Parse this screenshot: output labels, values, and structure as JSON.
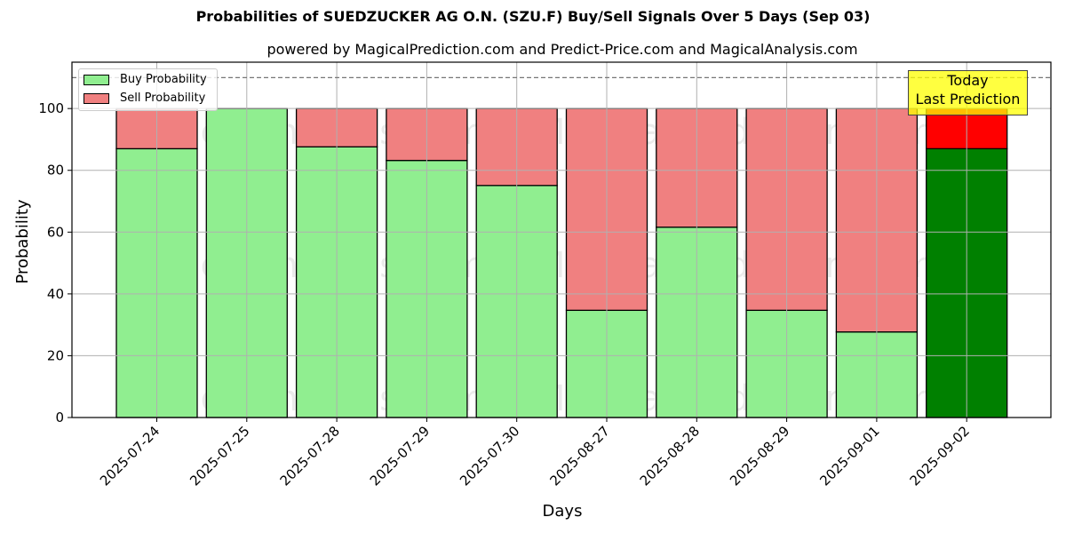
{
  "header": {
    "title": "Probabilities of SUEDZUCKER AG  O.N. (SZU.F) Buy/Sell Signals Over 5 Days (Sep 03)",
    "subtitle": "powered by MagicalPrediction.com and Predict-Price.com and MagicalAnalysis.com"
  },
  "legend": {
    "buy_label": "Buy Probability",
    "sell_label": "Sell Probability"
  },
  "annotation": {
    "line1": "Today",
    "line2": "Last Prediction"
  },
  "watermarks": [
    "MagicalAnalysis.com",
    "MagicalPrediction.com"
  ],
  "colors": {
    "buy": "#90ee90",
    "sell": "#f08080",
    "today_buy": "#008000",
    "today_sell": "#ff0000",
    "annotation_bg": "#ffff00"
  },
  "chart_data": {
    "type": "bar",
    "stacked": true,
    "title": "Probabilities of SUEDZUCKER AG  O.N. (SZU.F) Buy/Sell Signals Over 5 Days (Sep 03)",
    "subtitle": "powered by MagicalPrediction.com and Predict-Price.com and MagicalAnalysis.com",
    "xlabel": "Days",
    "ylabel": "Probability",
    "ylim": [
      0,
      115
    ],
    "yticks": [
      0,
      20,
      40,
      60,
      80,
      100
    ],
    "grid": true,
    "legend_position": "upper left",
    "reference_line": {
      "y": 110,
      "style": "dashed"
    },
    "categories": [
      "2025-07-24",
      "2025-07-25",
      "2025-07-28",
      "2025-07-29",
      "2025-07-30",
      "2025-08-27",
      "2025-08-28",
      "2025-08-29",
      "2025-09-01",
      "2025-09-02"
    ],
    "series": [
      {
        "name": "Buy Probability",
        "values": [
          87.0,
          100.0,
          87.6,
          83.2,
          75.1,
          34.7,
          61.6,
          34.7,
          27.7,
          87.0
        ]
      },
      {
        "name": "Sell Probability",
        "values": [
          13.0,
          0.0,
          12.4,
          16.8,
          24.9,
          65.3,
          38.4,
          65.3,
          72.3,
          13.0
        ]
      }
    ],
    "highlight": {
      "category": "2025-09-02",
      "label": "Today\nLast Prediction"
    }
  }
}
